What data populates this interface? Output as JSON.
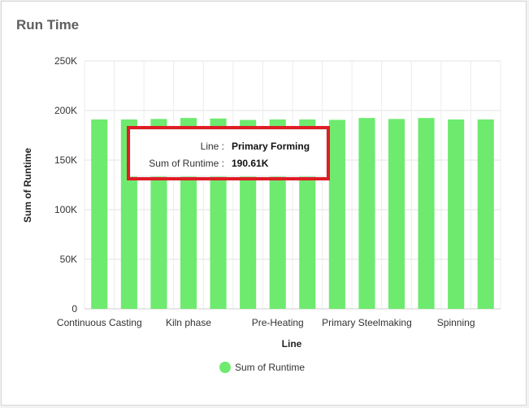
{
  "widget": {
    "title": "Run Time"
  },
  "legend": {
    "label": "Sum of Runtime",
    "color": "#6eea6e"
  },
  "tooltip": {
    "line_label": "Line :",
    "line_value": "Primary Forming",
    "sum_label": "Sum of Runtime :",
    "sum_value": "190.61K",
    "highlight_color": "#e01c24"
  },
  "chart_data": {
    "type": "bar",
    "xlabel": "Line",
    "ylabel": "Sum of Runtime",
    "ylim": [
      0,
      250000
    ],
    "yticks": [
      {
        "value": 0,
        "label": "0"
      },
      {
        "value": 50000,
        "label": "50K"
      },
      {
        "value": 100000,
        "label": "100K"
      },
      {
        "value": 150000,
        "label": "150K"
      },
      {
        "value": 200000,
        "label": "200K"
      },
      {
        "value": 250000,
        "label": "250K"
      }
    ],
    "xtick_labels": [
      {
        "index": 0.5,
        "label": "Continuous Casting"
      },
      {
        "index": 3.5,
        "label": "Kiln phase"
      },
      {
        "index": 6.5,
        "label": "Pre-Heating"
      },
      {
        "index": 9.5,
        "label": "Primary Steelmaking"
      },
      {
        "index": 12.5,
        "label": "Spinning"
      }
    ],
    "series": [
      {
        "name": "Sum of Runtime",
        "color": "#6eea6e",
        "values": [
          191000,
          191000,
          191500,
          192500,
          192000,
          190500,
          191000,
          191000,
          190610,
          192500,
          191500,
          192500,
          191000,
          191000
        ]
      }
    ],
    "grid": true,
    "legend_position": "bottom"
  }
}
